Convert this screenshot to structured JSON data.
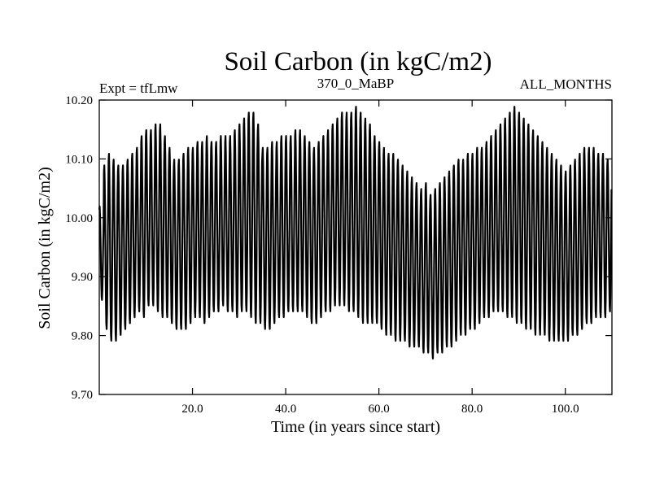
{
  "chart_data": {
    "type": "line",
    "title": "Soil Carbon (in kgC/m2)",
    "subtitle_left": "Expt = tfLmw",
    "subtitle_center": "370_0_MaBP",
    "subtitle_right": "ALL_MONTHS",
    "xlabel": "Time (in years since start)",
    "ylabel": "Soil Carbon (in kgC/m2)",
    "xlim": [
      0,
      110
    ],
    "ylim": [
      9.7,
      10.2
    ],
    "x_ticks": [
      20,
      40,
      60,
      80,
      100
    ],
    "x_tick_labels": [
      "20.0",
      "40.0",
      "60.0",
      "80.0",
      "100.0"
    ],
    "y_ticks": [
      9.7,
      9.8,
      9.9,
      10.0,
      10.1,
      10.2
    ],
    "y_tick_labels": [
      "9.70",
      "9.80",
      "9.90",
      "10.00",
      "10.10",
      "10.20"
    ],
    "grid": false,
    "series": [
      {
        "name": "Soil Carbon",
        "color": "#000000",
        "description": "Monthly values oscillating with an annual cycle",
        "annual_max": [
          10.02,
          10.09,
          10.11,
          10.1,
          10.09,
          10.09,
          10.1,
          10.11,
          10.12,
          10.14,
          10.15,
          10.15,
          10.16,
          10.16,
          10.14,
          10.12,
          10.1,
          10.1,
          10.11,
          10.12,
          10.12,
          10.13,
          10.13,
          10.14,
          10.13,
          10.13,
          10.14,
          10.14,
          10.14,
          10.15,
          10.16,
          10.17,
          10.18,
          10.18,
          10.16,
          10.12,
          10.12,
          10.13,
          10.13,
          10.14,
          10.14,
          10.14,
          10.15,
          10.15,
          10.14,
          10.13,
          10.12,
          10.13,
          10.14,
          10.15,
          10.16,
          10.17,
          10.18,
          10.18,
          10.18,
          10.19,
          10.18,
          10.17,
          10.16,
          10.14,
          10.13,
          10.12,
          10.11,
          10.11,
          10.1,
          10.09,
          10.08,
          10.07,
          10.06,
          10.05,
          10.06,
          10.04,
          10.05,
          10.06,
          10.07,
          10.08,
          10.09,
          10.1,
          10.1,
          10.11,
          10.11,
          10.12,
          10.12,
          10.13,
          10.14,
          10.15,
          10.16,
          10.17,
          10.18,
          10.19,
          10.18,
          10.17,
          10.16,
          10.15,
          10.14,
          10.13,
          10.12,
          10.11,
          10.1,
          10.09,
          10.08,
          10.09,
          10.1,
          10.11,
          10.12,
          10.12,
          10.12,
          10.11,
          10.11,
          10.1
        ],
        "annual_min": [
          9.86,
          9.81,
          9.79,
          9.79,
          9.8,
          9.81,
          9.82,
          9.83,
          9.84,
          9.83,
          9.85,
          9.85,
          9.84,
          9.83,
          9.83,
          9.82,
          9.81,
          9.81,
          9.81,
          9.82,
          9.83,
          9.83,
          9.82,
          9.83,
          9.84,
          9.84,
          9.85,
          9.84,
          9.84,
          9.83,
          9.84,
          9.84,
          9.83,
          9.82,
          9.82,
          9.81,
          9.81,
          9.82,
          9.83,
          9.83,
          9.84,
          9.84,
          9.84,
          9.84,
          9.83,
          9.82,
          9.82,
          9.83,
          9.84,
          9.84,
          9.85,
          9.85,
          9.85,
          9.84,
          9.84,
          9.83,
          9.82,
          9.82,
          9.82,
          9.82,
          9.81,
          9.8,
          9.8,
          9.79,
          9.79,
          9.79,
          9.78,
          9.78,
          9.78,
          9.77,
          9.77,
          9.76,
          9.77,
          9.77,
          9.78,
          9.78,
          9.79,
          9.8,
          9.8,
          9.81,
          9.81,
          9.82,
          9.83,
          9.83,
          9.84,
          9.84,
          9.84,
          9.83,
          9.83,
          9.82,
          9.82,
          9.81,
          9.81,
          9.8,
          9.8,
          9.8,
          9.79,
          9.79,
          9.79,
          9.79,
          9.79,
          9.8,
          9.8,
          9.81,
          9.82,
          9.82,
          9.83,
          9.83,
          9.83,
          9.84
        ]
      }
    ]
  }
}
